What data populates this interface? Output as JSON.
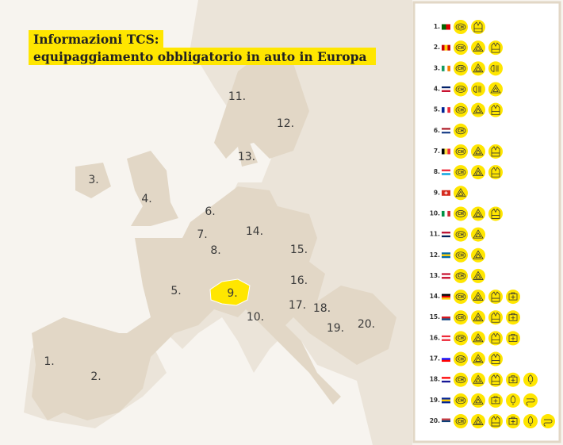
{
  "header": {
    "title_line1": "Informazioni TCS:",
    "title_line2": "equipaggiamento obbligatorio in auto in Europa"
  },
  "map": {
    "labels": [
      "1.",
      "2.",
      "3.",
      "4.",
      "5.",
      "6.",
      "7.",
      "8.",
      "9.",
      "10.",
      "11.",
      "12.",
      "13.",
      "14.",
      "15.",
      "16.",
      "17.",
      "18.",
      "19.",
      "20."
    ]
  },
  "legend": {
    "ch_badge": "CH",
    "rows": [
      {
        "number": "1."
      },
      {
        "number": "2."
      },
      {
        "number": "3."
      },
      {
        "number": "4."
      },
      {
        "number": "5."
      },
      {
        "number": "6."
      },
      {
        "number": "7."
      },
      {
        "number": "8."
      },
      {
        "number": "9."
      },
      {
        "number": "10."
      },
      {
        "number": "11."
      },
      {
        "number": "12."
      },
      {
        "number": "13."
      },
      {
        "number": "14."
      },
      {
        "number": "15."
      },
      {
        "number": "16."
      },
      {
        "number": "17."
      },
      {
        "number": "18."
      },
      {
        "number": "19."
      },
      {
        "number": "20."
      }
    ]
  }
}
